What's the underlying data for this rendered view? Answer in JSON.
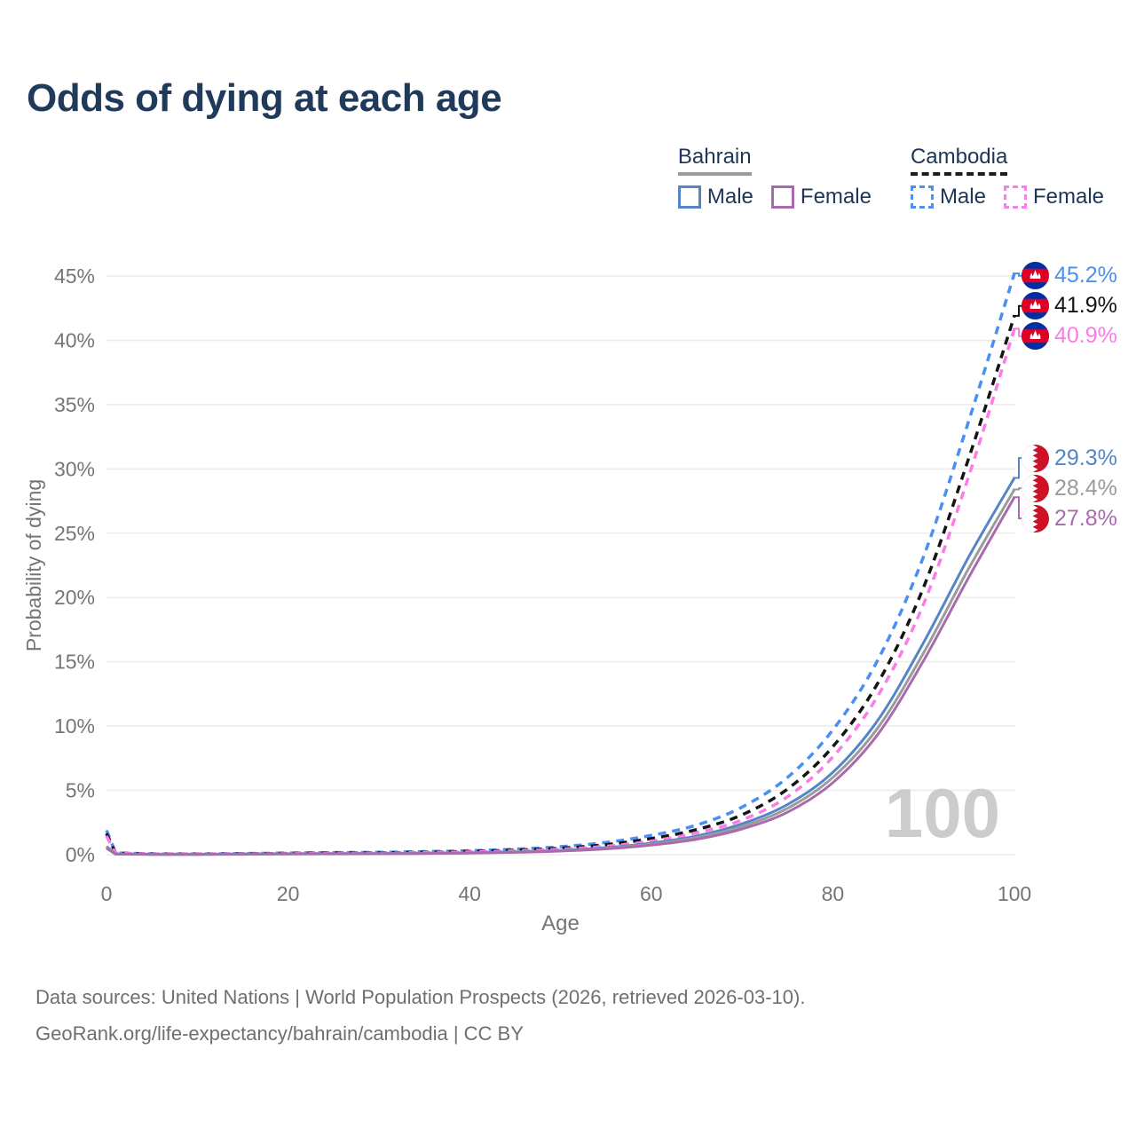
{
  "header": {
    "title": "Odds of dying at each age"
  },
  "legend": {
    "groups": [
      {
        "country": "Bahrain",
        "underline": {
          "style": "solid",
          "color": "#9b9b9b"
        },
        "items": [
          {
            "label": "Male",
            "color": "#5585c6",
            "dashed": false
          },
          {
            "label": "Female",
            "color": "#a96bae",
            "dashed": false
          }
        ]
      },
      {
        "country": "Cambodia",
        "underline": {
          "style": "dashed",
          "color": "#1c1c1c"
        },
        "items": [
          {
            "label": "Male",
            "color": "#4a90f2",
            "dashed": true
          },
          {
            "label": "Female",
            "color": "#fb7ce8",
            "dashed": true
          }
        ]
      }
    ]
  },
  "chart_data": {
    "type": "line",
    "title": "Odds of dying at each age",
    "xlabel": "Age",
    "ylabel": "Probability of dying",
    "xlim": [
      0,
      100
    ],
    "ylim": [
      0,
      47
    ],
    "grid": "horizontal",
    "legend_position": "top-right",
    "watermark": "100",
    "xticks": [
      {
        "label": "0",
        "value": 0
      },
      {
        "label": "20",
        "value": 20
      },
      {
        "label": "40",
        "value": 40
      },
      {
        "label": "60",
        "value": 60
      },
      {
        "label": "80",
        "value": 80
      },
      {
        "label": "100",
        "value": 100
      }
    ],
    "yticks": [
      {
        "label": "0%",
        "value": 0
      },
      {
        "label": "5%",
        "value": 5
      },
      {
        "label": "10%",
        "value": 10
      },
      {
        "label": "15%",
        "value": 15
      },
      {
        "label": "20%",
        "value": 20
      },
      {
        "label": "25%",
        "value": 25
      },
      {
        "label": "30%",
        "value": 30
      },
      {
        "label": "35%",
        "value": 35
      },
      {
        "label": "40%",
        "value": 40
      },
      {
        "label": "45%",
        "value": 45
      }
    ],
    "series": [
      {
        "name": "Cambodia Male",
        "country": "Cambodia",
        "sex": "male",
        "color": "#4a90f2",
        "dashed": true,
        "flag": "kh",
        "end_label": "45.2%",
        "points": [
          [
            0,
            1.9
          ],
          [
            1,
            0.14
          ],
          [
            5,
            0.07
          ],
          [
            10,
            0.06
          ],
          [
            15,
            0.09
          ],
          [
            20,
            0.13
          ],
          [
            25,
            0.16
          ],
          [
            30,
            0.19
          ],
          [
            35,
            0.24
          ],
          [
            40,
            0.31
          ],
          [
            45,
            0.43
          ],
          [
            50,
            0.62
          ],
          [
            55,
            0.95
          ],
          [
            60,
            1.5
          ],
          [
            65,
            2.3
          ],
          [
            70,
            3.7
          ],
          [
            75,
            6.0
          ],
          [
            80,
            9.7
          ],
          [
            85,
            15.2
          ],
          [
            90,
            23.2
          ],
          [
            95,
            33.8
          ],
          [
            100,
            45.2
          ]
        ]
      },
      {
        "name": "Cambodia Both sexes",
        "country": "Cambodia",
        "sex": "both",
        "color": "#141414",
        "dashed": true,
        "flag": "kh",
        "end_label": "41.9%",
        "points": [
          [
            0,
            1.65
          ],
          [
            1,
            0.12
          ],
          [
            5,
            0.06
          ],
          [
            10,
            0.05
          ],
          [
            15,
            0.07
          ],
          [
            20,
            0.1
          ],
          [
            25,
            0.13
          ],
          [
            30,
            0.15
          ],
          [
            35,
            0.19
          ],
          [
            40,
            0.25
          ],
          [
            45,
            0.35
          ],
          [
            50,
            0.5
          ],
          [
            55,
            0.78
          ],
          [
            60,
            1.25
          ],
          [
            65,
            1.95
          ],
          [
            70,
            3.1
          ],
          [
            75,
            5.1
          ],
          [
            80,
            8.4
          ],
          [
            85,
            13.4
          ],
          [
            90,
            20.8
          ],
          [
            95,
            30.9
          ],
          [
            100,
            41.9
          ]
        ]
      },
      {
        "name": "Cambodia Female",
        "country": "Cambodia",
        "sex": "female",
        "color": "#fb7ce8",
        "dashed": true,
        "flag": "kh",
        "end_label": "40.9%",
        "points": [
          [
            0,
            1.45
          ],
          [
            1,
            0.11
          ],
          [
            5,
            0.05
          ],
          [
            10,
            0.04
          ],
          [
            15,
            0.06
          ],
          [
            20,
            0.08
          ],
          [
            25,
            0.1
          ],
          [
            30,
            0.12
          ],
          [
            35,
            0.16
          ],
          [
            40,
            0.21
          ],
          [
            45,
            0.29
          ],
          [
            50,
            0.42
          ],
          [
            55,
            0.65
          ],
          [
            60,
            1.05
          ],
          [
            65,
            1.7
          ],
          [
            70,
            2.7
          ],
          [
            75,
            4.5
          ],
          [
            80,
            7.6
          ],
          [
            85,
            12.4
          ],
          [
            90,
            19.5
          ],
          [
            95,
            29.5
          ],
          [
            100,
            40.9
          ]
        ]
      },
      {
        "name": "Bahrain Male",
        "country": "Bahrain",
        "sex": "male",
        "color": "#5585c6",
        "dashed": false,
        "flag": "bh",
        "end_label": "29.3%",
        "points": [
          [
            0,
            0.65
          ],
          [
            1,
            0.05
          ],
          [
            5,
            0.03
          ],
          [
            10,
            0.03
          ],
          [
            15,
            0.05
          ],
          [
            20,
            0.07
          ],
          [
            25,
            0.08
          ],
          [
            30,
            0.09
          ],
          [
            35,
            0.11
          ],
          [
            40,
            0.15
          ],
          [
            45,
            0.22
          ],
          [
            50,
            0.34
          ],
          [
            55,
            0.55
          ],
          [
            60,
            0.9
          ],
          [
            65,
            1.45
          ],
          [
            70,
            2.4
          ],
          [
            75,
            3.9
          ],
          [
            80,
            6.4
          ],
          [
            85,
            10.5
          ],
          [
            90,
            16.5
          ],
          [
            95,
            23.2
          ],
          [
            100,
            29.3
          ]
        ]
      },
      {
        "name": "Bahrain Both sexes",
        "country": "Bahrain",
        "sex": "both",
        "color": "#9b9b9b",
        "dashed": false,
        "flag": "bh",
        "end_label": "28.4%",
        "points": [
          [
            0,
            0.58
          ],
          [
            1,
            0.05
          ],
          [
            5,
            0.03
          ],
          [
            10,
            0.03
          ],
          [
            15,
            0.04
          ],
          [
            20,
            0.06
          ],
          [
            25,
            0.07
          ],
          [
            30,
            0.08
          ],
          [
            35,
            0.1
          ],
          [
            40,
            0.14
          ],
          [
            45,
            0.2
          ],
          [
            50,
            0.31
          ],
          [
            55,
            0.5
          ],
          [
            60,
            0.82
          ],
          [
            65,
            1.33
          ],
          [
            70,
            2.2
          ],
          [
            75,
            3.6
          ],
          [
            80,
            6.0
          ],
          [
            85,
            9.9
          ],
          [
            90,
            15.7
          ],
          [
            95,
            22.3
          ],
          [
            100,
            28.4
          ]
        ]
      },
      {
        "name": "Bahrain Female",
        "country": "Bahrain",
        "sex": "female",
        "color": "#a96bae",
        "dashed": false,
        "flag": "bh",
        "end_label": "27.8%",
        "points": [
          [
            0,
            0.5
          ],
          [
            1,
            0.04
          ],
          [
            5,
            0.02
          ],
          [
            10,
            0.02
          ],
          [
            15,
            0.03
          ],
          [
            20,
            0.05
          ],
          [
            25,
            0.06
          ],
          [
            30,
            0.07
          ],
          [
            35,
            0.09
          ],
          [
            40,
            0.12
          ],
          [
            45,
            0.18
          ],
          [
            50,
            0.28
          ],
          [
            55,
            0.45
          ],
          [
            60,
            0.74
          ],
          [
            65,
            1.2
          ],
          [
            70,
            2.0
          ],
          [
            75,
            3.3
          ],
          [
            80,
            5.6
          ],
          [
            85,
            9.4
          ],
          [
            90,
            15.1
          ],
          [
            95,
            21.6
          ],
          [
            100,
            27.8
          ]
        ]
      }
    ],
    "axis_color": "#757575",
    "gridline_color": "#ececec",
    "watermark_color": "#cccccc"
  },
  "footer": {
    "line1": "Data sources: United Nations | World Population Prospects (2026, retrieved 2026-03-10).",
    "line2": "GeoRank.org/life-expectancy/bahrain/cambodia | CC BY"
  }
}
